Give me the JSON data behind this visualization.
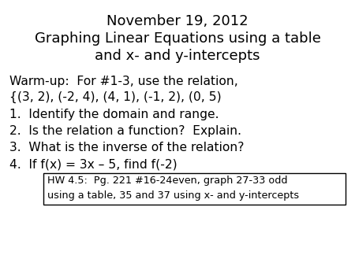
{
  "title_line1": "November 19, 2012",
  "title_line2": "Graphing Linear Equations using a table",
  "title_line3": "and x- and y-intercepts",
  "warmup_line1": "Warm-up:  For #1-3, use the relation,",
  "warmup_line2": "{(3, 2), (-2, 4), (4, 1), (-1, 2), (0, 5)",
  "items": [
    "1.  Identify the domain and range.",
    "2.  Is the relation a function?  Explain.",
    "3.  What is the inverse of the relation?",
    "4.  If f(x) = 3x – 5, find f(-2)"
  ],
  "hw_line1": "HW 4.5:  Pg. 221 #16-24even, graph 27-33 odd",
  "hw_line2": "using a table, 35 and 37 using x- and y-intercepts",
  "bg_color": "#ffffff",
  "text_color": "#000000",
  "box_color": "#000000",
  "title_fontsize": 13.0,
  "body_fontsize": 11.2,
  "hw_fontsize": 9.2,
  "fig_width": 4.5,
  "fig_height": 3.38,
  "fig_dpi": 100
}
